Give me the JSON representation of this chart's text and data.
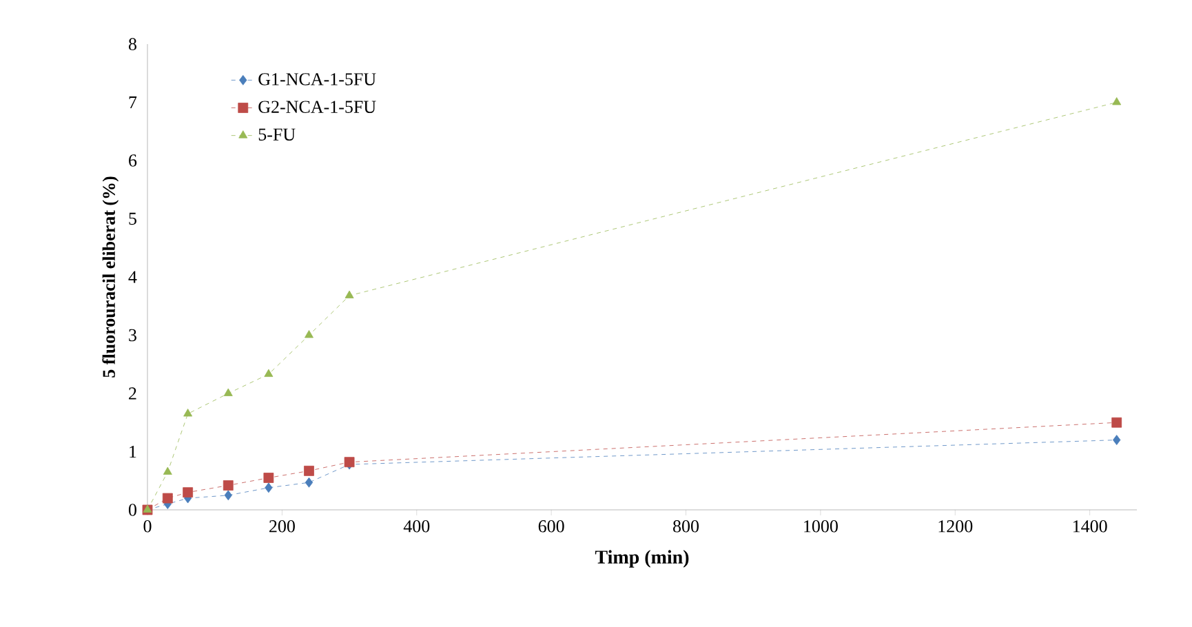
{
  "chart_data": {
    "type": "line",
    "xlabel": "Timp (min)",
    "ylabel": "5 fluorouracil eliberat (%)",
    "x": [
      0,
      30,
      60,
      120,
      180,
      240,
      300,
      1440
    ],
    "series": [
      {
        "name": "G1-NCA-1-5FU",
        "color": "#4a7ebb",
        "marker": "diamond",
        "values": [
          0,
          0.1,
          0.2,
          0.25,
          0.38,
          0.47,
          0.78,
          1.2
        ]
      },
      {
        "name": "G2-NCA-1-5FU",
        "color": "#be4b48",
        "marker": "square",
        "values": [
          0,
          0.2,
          0.3,
          0.42,
          0.55,
          0.67,
          0.82,
          1.5
        ]
      },
      {
        "name": "5-FU",
        "color": "#98b954",
        "marker": "triangle",
        "values": [
          0,
          0.65,
          1.65,
          2.0,
          2.33,
          3.0,
          3.68,
          7.0
        ]
      }
    ],
    "line_style": "dashed",
    "xlim": [
      0,
      1470
    ],
    "ylim": [
      0,
      8
    ],
    "xticks": [
      0,
      200,
      400,
      600,
      800,
      1000,
      1200,
      1400
    ],
    "yticks": [
      0,
      1,
      2,
      3,
      4,
      5,
      6,
      7,
      8
    ],
    "grid": false,
    "legend": "top left"
  }
}
